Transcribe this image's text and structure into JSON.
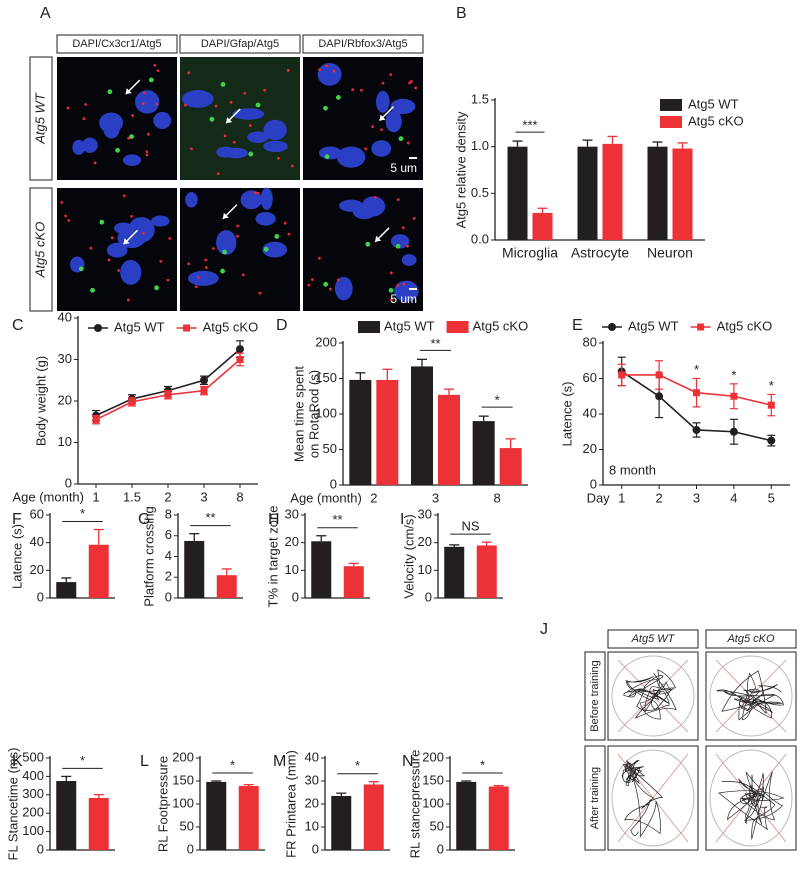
{
  "images": [
    {
      "panel": "A",
      "columns": [
        "DAPI/Cx3cr1/Atg5",
        "DAPI/Gfap/Atg5",
        "DAPI/Rbfox3/Atg5"
      ],
      "rows": [
        "Atg5 WT",
        "Atg5 cKO"
      ],
      "scale_bar": "5 um"
    },
    {
      "panel": "J",
      "columns": [
        "Atg5 WT",
        "Atg5 cKO"
      ],
      "rows": [
        "Before training",
        "After training"
      ]
    }
  ],
  "chart_data": [
    {
      "panel": "B",
      "type": "bar",
      "ylabel": [
        "Atg5 relative density"
      ],
      "categories": [
        "Microglia",
        "Astrocyte",
        "Neuron"
      ],
      "series": [
        {
          "name": "Atg5 WT",
          "color": "#231f20",
          "values": [
            1.0,
            1.0,
            1.0
          ],
          "errors": [
            0.06,
            0.07,
            0.05
          ]
        },
        {
          "name": "Atg5 cKO",
          "color": "#ed3237",
          "values": [
            0.29,
            1.03,
            0.98
          ],
          "errors": [
            0.05,
            0.08,
            0.06
          ]
        }
      ],
      "ylim": [
        0,
        1.5
      ],
      "yticks": [
        {
          "value": 0,
          "label": "0.0"
        },
        0.5,
        {
          "value": 1,
          "label": "1.0"
        },
        1.5
      ],
      "significance": [
        "***",
        null,
        null
      ],
      "legend": "top-right"
    },
    {
      "panel": "C",
      "type": "line",
      "ylabel": [
        "Body weight (g)"
      ],
      "xlabel": "Age (month)",
      "categories": [
        "1",
        "1.5",
        "2",
        "3",
        "8"
      ],
      "series": [
        {
          "name": "Atg5 WT",
          "color": "#231f20",
          "marker": "circle",
          "values": [
            16.5,
            20.5,
            22.5,
            25,
            32.5
          ],
          "errors": [
            1.2,
            1,
            1,
            1,
            2
          ]
        },
        {
          "name": "Atg5 cKO",
          "color": "#ed3237",
          "marker": "square",
          "values": [
            15.5,
            19.8,
            21.5,
            22.5,
            30
          ],
          "errors": [
            1,
            1,
            1,
            1,
            1.5
          ]
        }
      ],
      "ylim": [
        0,
        40
      ],
      "yticks": [
        0,
        10,
        20,
        30,
        40
      ],
      "legend": "top"
    },
    {
      "panel": "D",
      "type": "bar",
      "ylabel": [
        "Mean time spent",
        "on RotaRod (s)"
      ],
      "xlabel": "Age (month)",
      "categories": [
        "2",
        "3",
        "8"
      ],
      "series": [
        {
          "name": "Atg5 WT",
          "color": "#231f20",
          "values": [
            148,
            167,
            90
          ],
          "errors": [
            10,
            10,
            7
          ]
        },
        {
          "name": "Atg5 cKO",
          "color": "#ed3237",
          "values": [
            148,
            127,
            52
          ],
          "errors": [
            15,
            8,
            13
          ]
        }
      ],
      "ylim": [
        0,
        200
      ],
      "yticks": [
        0,
        50,
        100,
        150,
        200
      ],
      "significance": [
        null,
        "**",
        "*"
      ],
      "legend": "top"
    },
    {
      "panel": "E",
      "type": "line",
      "ylabel": [
        "Latence (s)"
      ],
      "xlabel": "Day",
      "annotation": "8 month",
      "categories": [
        "1",
        "2",
        "3",
        "4",
        "5"
      ],
      "series": [
        {
          "name": "Atg5 WT",
          "color": "#231f20",
          "marker": "circle",
          "values": [
            64,
            50,
            31,
            30,
            25
          ],
          "errors": [
            8,
            12,
            4,
            7,
            3
          ]
        },
        {
          "name": "Atg5 cKO",
          "color": "#ed3237",
          "marker": "square",
          "values": [
            62,
            62,
            52,
            50,
            45
          ],
          "errors": [
            6,
            8,
            8,
            7,
            6
          ]
        }
      ],
      "ylim": [
        0,
        80
      ],
      "yticks": [
        0,
        20,
        40,
        60,
        80
      ],
      "significance": [
        null,
        null,
        "*",
        "*",
        "*"
      ],
      "legend": "top"
    },
    {
      "panel": "F",
      "type": "bar",
      "ylabel": [
        "Latence (s)"
      ],
      "categories": [
        null,
        null
      ],
      "values": [
        11.5,
        38.5
      ],
      "errors": [
        3,
        11
      ],
      "colors": [
        "#231f20",
        "#ed3237"
      ],
      "ylim": [
        0,
        60
      ],
      "yticks": [
        0,
        20,
        40,
        60
      ],
      "significance": "*"
    },
    {
      "panel": "G",
      "type": "bar",
      "ylabel": [
        "Platform crossing"
      ],
      "categories": [
        null,
        null
      ],
      "values": [
        5.5,
        2.2
      ],
      "errors": [
        0.7,
        0.6
      ],
      "colors": [
        "#231f20",
        "#ed3237"
      ],
      "ylim": [
        0,
        8
      ],
      "yticks": [
        0,
        2,
        4,
        6,
        8
      ],
      "significance": "**"
    },
    {
      "panel": "H",
      "type": "bar",
      "ylabel": [
        "T% in target zone"
      ],
      "categories": [
        null,
        null
      ],
      "values": [
        20.5,
        11.5
      ],
      "errors": [
        2,
        1
      ],
      "colors": [
        "#231f20",
        "#ed3237"
      ],
      "ylim": [
        0,
        30
      ],
      "yticks": [
        0,
        10,
        20,
        30
      ],
      "significance": "**"
    },
    {
      "panel": "I",
      "type": "bar",
      "ylabel": [
        "Velocity (cm/s)"
      ],
      "categories": [
        null,
        null
      ],
      "values": [
        18.5,
        19
      ],
      "errors": [
        0.7,
        1.2
      ],
      "colors": [
        "#231f20",
        "#ed3237"
      ],
      "ylim": [
        0,
        30
      ],
      "yticks": [
        0,
        10,
        20,
        30
      ],
      "significance": "NS"
    },
    {
      "panel": "K",
      "type": "bar",
      "ylabel": [
        "FL Stancetime (ms)"
      ],
      "categories": [
        null,
        null
      ],
      "values": [
        375,
        283
      ],
      "errors": [
        25,
        18
      ],
      "colors": [
        "#231f20",
        "#ed3237"
      ],
      "ylim": [
        0,
        500
      ],
      "yticks": [
        0,
        100,
        200,
        300,
        400,
        500
      ],
      "significance": "*"
    },
    {
      "panel": "L",
      "type": "bar",
      "ylabel": [
        "RL Footpressure"
      ],
      "categories": [
        null,
        null
      ],
      "values": [
        148,
        139
      ],
      "errors": [
        2,
        3
      ],
      "colors": [
        "#231f20",
        "#ed3237"
      ],
      "ylim": [
        0,
        200
      ],
      "yticks": [
        0,
        50,
        100,
        150,
        200
      ],
      "significance": "*"
    },
    {
      "panel": "M",
      "type": "bar",
      "ylabel": [
        "FR Printarea (mm)"
      ],
      "categories": [
        null,
        null
      ],
      "values": [
        23.5,
        28.5
      ],
      "errors": [
        1.2,
        1.2
      ],
      "colors": [
        "#231f20",
        "#ed3237"
      ],
      "ylim": [
        0,
        40
      ],
      "yticks": [
        0,
        10,
        20,
        30,
        40
      ],
      "significance": "*"
    },
    {
      "panel": "N",
      "type": "bar",
      "ylabel": [
        "RL stancepressure"
      ],
      "categories": [
        null,
        null
      ],
      "values": [
        148,
        138
      ],
      "errors": [
        2,
        2
      ],
      "colors": [
        "#231f20",
        "#ed3237"
      ],
      "ylim": [
        0,
        200
      ],
      "yticks": [
        0,
        50,
        100,
        150,
        200
      ],
      "significance": "*"
    }
  ]
}
